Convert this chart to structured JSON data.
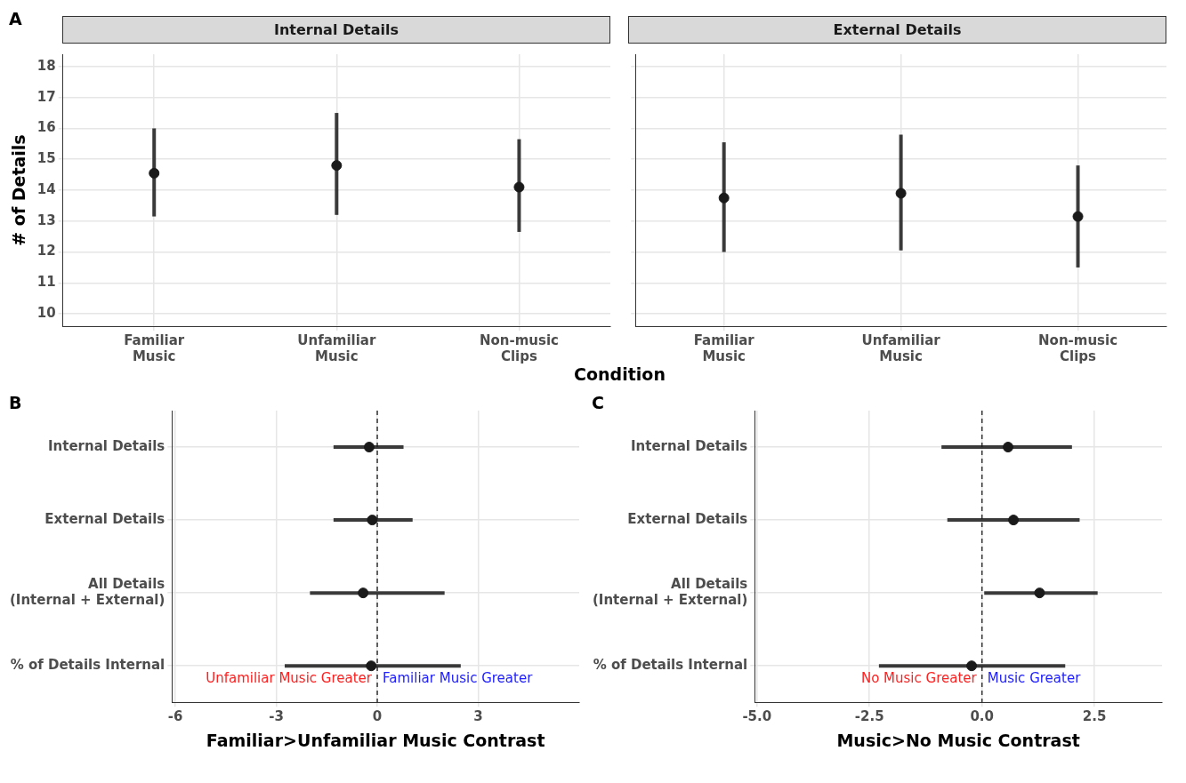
{
  "chart_data": [
    {
      "type": "scatter",
      "title": "Internal Details",
      "ylabel": "# of Details",
      "xlabel": "Condition",
      "annotations": [
        "A"
      ],
      "categories": [
        "Familiar\nMusic",
        "Unfamiliar\nMusic",
        "Non-music\nClips"
      ],
      "series": [
        {
          "color": "#1a1a1a",
          "values": [
            14.55,
            14.8,
            14.1
          ],
          "errors": [
            [
              13.15,
              16.0
            ],
            [
              13.2,
              16.5
            ],
            [
              12.65,
              15.65
            ]
          ]
        }
      ],
      "ylim": [
        9.6,
        18.4
      ],
      "yticks": [
        10,
        11,
        12,
        13,
        14,
        15,
        16,
        17,
        18
      ],
      "grid": true,
      "marker": "circle"
    },
    {
      "type": "scatter",
      "title": "External Details",
      "categories": [
        "Familiar\nMusic",
        "Unfamiliar\nMusic",
        "Non-music\nClips"
      ],
      "series": [
        {
          "color": "#1a1a1a",
          "values": [
            13.75,
            13.9,
            13.15
          ],
          "errors": [
            [
              12.0,
              15.55
            ],
            [
              12.05,
              15.8
            ],
            [
              11.5,
              14.8
            ]
          ]
        }
      ],
      "ylim": [
        9.6,
        18.4
      ],
      "yticks": [
        10,
        11,
        12,
        13,
        14,
        15,
        16,
        17,
        18
      ],
      "tick_labels": "x",
      "grid": true,
      "marker": "circle"
    },
    {
      "type": "scatter",
      "orientation": "horizontal",
      "xlabel": "Familiar>Unfamiliar Music Contrast",
      "annotations": [
        "B",
        "Unfamiliar Music Greater",
        "Familiar Music Greater"
      ],
      "categories": [
        "Internal Details",
        "External Details",
        "All Details\n(Internal + External)",
        "% of Details Internal"
      ],
      "series": [
        {
          "color": "#1a1a1a",
          "values": [
            -0.24,
            -0.15,
            -0.42,
            -0.18
          ],
          "errors": [
            [
              -1.3,
              0.78
            ],
            [
              -1.3,
              1.05
            ],
            [
              -2.0,
              2.0
            ],
            [
              -2.75,
              2.48
            ]
          ]
        }
      ],
      "xlim": [
        -6.1,
        6.0
      ],
      "xticks": [
        -6,
        -3,
        0,
        3
      ],
      "grid": true,
      "marker": "circle",
      "ref_lines": [
        {
          "axis": "x",
          "value": 0,
          "line_style": "dashed"
        }
      ]
    },
    {
      "type": "scatter",
      "orientation": "horizontal",
      "xlabel": "Music>No Music Contrast",
      "annotations": [
        "C",
        "No Music Greater",
        "Music Greater"
      ],
      "categories": [
        "Internal Details",
        "External Details",
        "All Details\n(Internal + External)",
        "% of Details Internal"
      ],
      "series": [
        {
          "color": "#1a1a1a",
          "values": [
            0.58,
            0.7,
            1.28,
            -0.23
          ],
          "errors": [
            [
              -0.9,
              2.0
            ],
            [
              -0.77,
              2.17
            ],
            [
              0.05,
              2.57
            ],
            [
              -2.29,
              1.85
            ]
          ]
        }
      ],
      "xlim": [
        -5.05,
        4.0
      ],
      "xticks": [
        {
          "value": -5,
          "label": "-5.0"
        },
        {
          "value": -2.5,
          "label": "-2.5"
        },
        {
          "value": 0,
          "label": "0.0"
        },
        {
          "value": 2.5,
          "label": "2.5"
        }
      ],
      "grid": true,
      "marker": "circle",
      "ref_lines": [
        {
          "axis": "x",
          "value": 0,
          "line_style": "dashed"
        }
      ]
    }
  ]
}
